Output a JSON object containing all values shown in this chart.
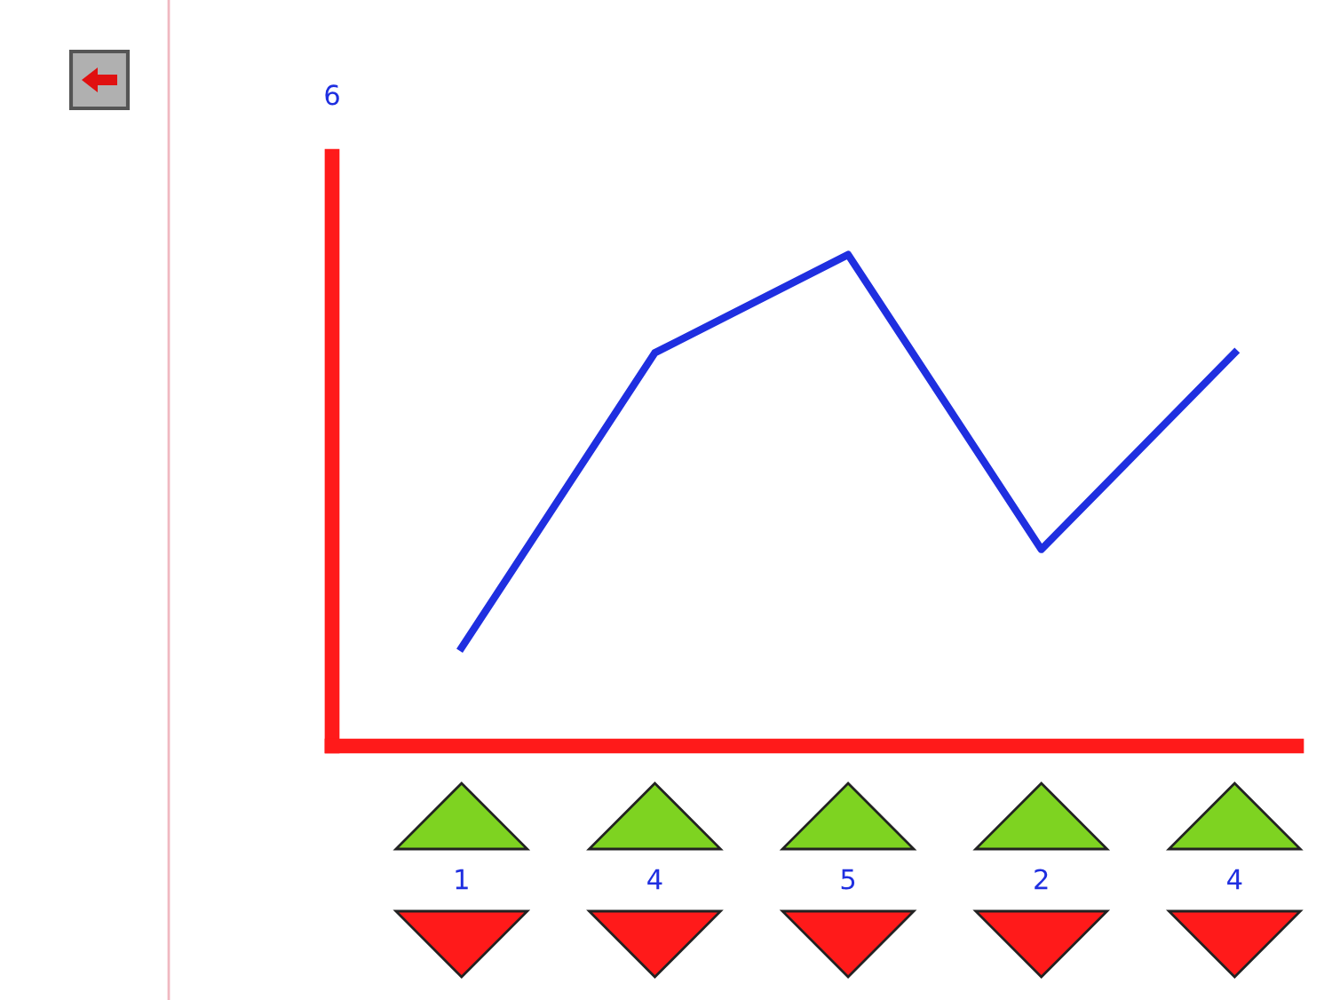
{
  "chart_data": {
    "type": "line",
    "categories": [
      null,
      null,
      null,
      null,
      null
    ],
    "series": [
      {
        "color": "#1f2fe0",
        "values": [
          1,
          4,
          5,
          2,
          4
        ]
      }
    ],
    "ylim": [
      0,
      6
    ],
    "data_labels": true,
    "annotations": [
      "6"
    ],
    "grid": false,
    "legend": false,
    "marker": "none",
    "line_style": "solid"
  }
}
